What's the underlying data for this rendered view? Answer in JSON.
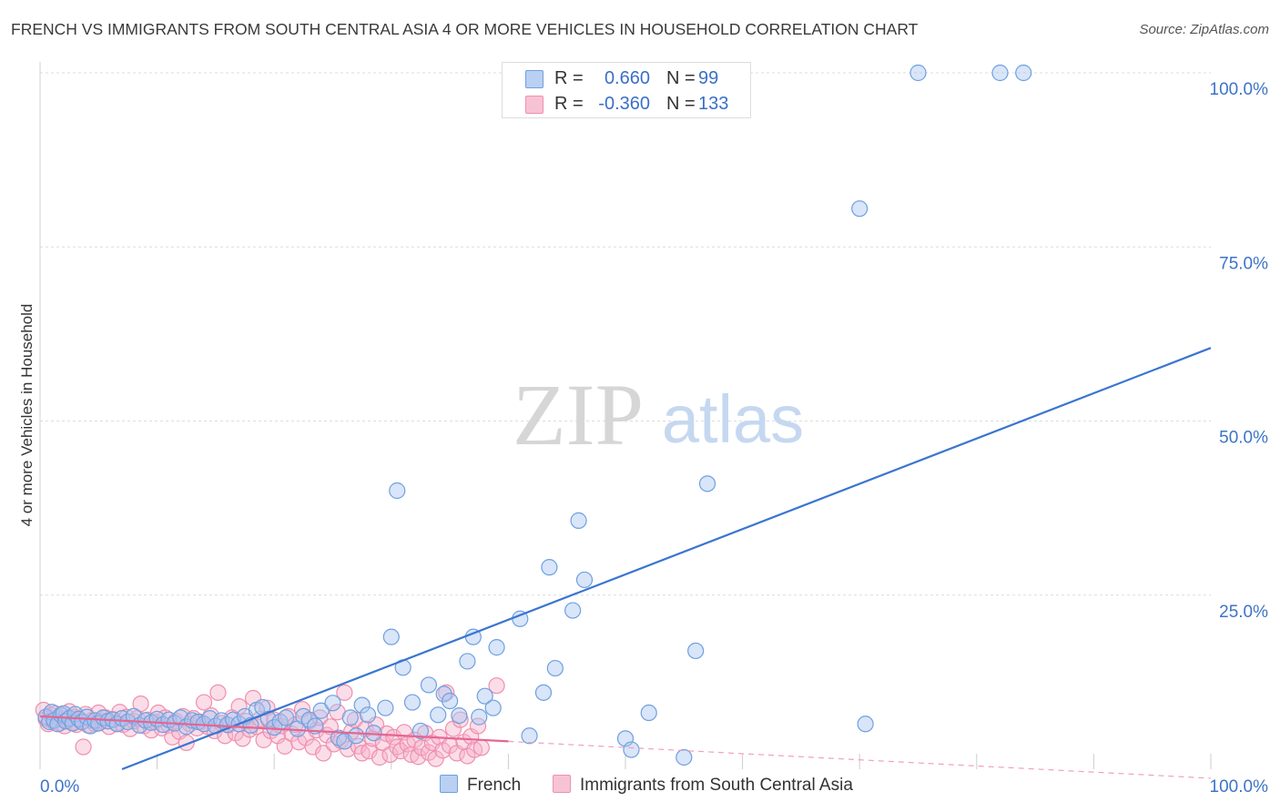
{
  "header": {
    "title": "FRENCH VS IMMIGRANTS FROM SOUTH CENTRAL ASIA 4 OR MORE VEHICLES IN HOUSEHOLD CORRELATION CHART",
    "source": "Source: ZipAtlas.com"
  },
  "watermark": {
    "zip": "ZIP",
    "atlas": "atlas"
  },
  "legend": {
    "series": [
      {
        "name": "French",
        "r_label": "R =",
        "r_value": "0.660",
        "n_label": "N =",
        "n_value": "99",
        "color": "#6fa0e0",
        "fill": "#b9d0f2"
      },
      {
        "name": "Immigrants from South Central Asia",
        "r_label": "R =",
        "r_value": "-0.360",
        "n_label": "N =",
        "n_value": "133",
        "color": "#ef8faf",
        "fill": "#f7c3d4"
      }
    ]
  },
  "chart_data": {
    "type": "scatter",
    "title": "FRENCH VS IMMIGRANTS FROM SOUTH CENTRAL ASIA 4 OR MORE VEHICLES IN HOUSEHOLD CORRELATION CHART",
    "xlabel": "",
    "ylabel": "4 or more Vehicles in Household",
    "xlim": [
      0,
      100
    ],
    "ylim": [
      0,
      100
    ],
    "x_tick_labels": [
      "0.0%",
      "100.0%"
    ],
    "y_tick_labels": [
      "25.0%",
      "50.0%",
      "75.0%",
      "100.0%"
    ],
    "y_tick_values": [
      25,
      50,
      75,
      100
    ],
    "series": [
      {
        "name": "French",
        "color": "#3a75d0",
        "trend": {
          "x": [
            7,
            100
          ],
          "y": [
            0,
            60.5
          ]
        },
        "points": [
          [
            0.5,
            7.5
          ],
          [
            0.8,
            6.8
          ],
          [
            1,
            8.2
          ],
          [
            1.2,
            7
          ],
          [
            1.5,
            6.5
          ],
          [
            1.8,
            7.8
          ],
          [
            2,
            8
          ],
          [
            2.2,
            6.9
          ],
          [
            2.5,
            7.3
          ],
          [
            2.8,
            6.6
          ],
          [
            3,
            7.9
          ],
          [
            3.3,
            7.2
          ],
          [
            3.6,
            6.8
          ],
          [
            4,
            7.5
          ],
          [
            4.3,
            6.2
          ],
          [
            4.7,
            7
          ],
          [
            5,
            6.6
          ],
          [
            5.4,
            7.4
          ],
          [
            5.8,
            6.9
          ],
          [
            6.2,
            7.1
          ],
          [
            6.6,
            6.5
          ],
          [
            7,
            7.3
          ],
          [
            7.5,
            6.8
          ],
          [
            8,
            7.6
          ],
          [
            8.5,
            6.3
          ],
          [
            9,
            7
          ],
          [
            9.5,
            6.7
          ],
          [
            10,
            7.2
          ],
          [
            10.5,
            6.4
          ],
          [
            11,
            7.1
          ],
          [
            11.5,
            6.6
          ],
          [
            12,
            7.4
          ],
          [
            12.5,
            6.1
          ],
          [
            13,
            7
          ],
          [
            13.5,
            6.8
          ],
          [
            14,
            6.5
          ],
          [
            14.5,
            7.3
          ],
          [
            15,
            6.2
          ],
          [
            15.5,
            7
          ],
          [
            16,
            6.4
          ],
          [
            16.5,
            7.1
          ],
          [
            17,
            6.5
          ],
          [
            17.5,
            7.6
          ],
          [
            18,
            6.3
          ],
          [
            18.5,
            8.5
          ],
          [
            19,
            8.9
          ],
          [
            19.5,
            7.2
          ],
          [
            20,
            6
          ],
          [
            20.5,
            6.8
          ],
          [
            21,
            7.4
          ],
          [
            22,
            5.8
          ],
          [
            22.5,
            7.6
          ],
          [
            23,
            7.1
          ],
          [
            23.5,
            6.2
          ],
          [
            24,
            8.4
          ],
          [
            25,
            9.5
          ],
          [
            25.5,
            4.5
          ],
          [
            26,
            4
          ],
          [
            26.5,
            7.4
          ],
          [
            27,
            4.8
          ],
          [
            27.5,
            9.2
          ],
          [
            28,
            7.8
          ],
          [
            28.5,
            5.2
          ],
          [
            29.5,
            8.8
          ],
          [
            30.5,
            40
          ],
          [
            30,
            19
          ],
          [
            31,
            14.6
          ],
          [
            31.8,
            9.6
          ],
          [
            32.5,
            5.5
          ],
          [
            33.2,
            12.1
          ],
          [
            34,
            7.8
          ],
          [
            34.5,
            10.8
          ],
          [
            35,
            9.8
          ],
          [
            35.8,
            7.7
          ],
          [
            36.5,
            15.5
          ],
          [
            37,
            19
          ],
          [
            37.5,
            7.5
          ],
          [
            38,
            10.5
          ],
          [
            38.7,
            8.8
          ],
          [
            39,
            17.5
          ],
          [
            41,
            21.6
          ],
          [
            41.8,
            4.8
          ],
          [
            43,
            11
          ],
          [
            43.5,
            29
          ],
          [
            44,
            14.5
          ],
          [
            45.5,
            22.8
          ],
          [
            46,
            35.7
          ],
          [
            46.5,
            27.2
          ],
          [
            50,
            4.4
          ],
          [
            50.5,
            2.8
          ],
          [
            52,
            8.1
          ],
          [
            55,
            1.7
          ],
          [
            56,
            17
          ],
          [
            57,
            41
          ],
          [
            70,
            80.5
          ],
          [
            75,
            100
          ],
          [
            82,
            100
          ],
          [
            84,
            100
          ],
          [
            70.5,
            6.5
          ]
        ]
      },
      {
        "name": "Immigrants from South Central Asia",
        "color": "#e66592",
        "trend": {
          "x": [
            0,
            40
          ],
          "y": [
            7.6,
            4.0
          ]
        },
        "trend_dashed": {
          "x": [
            40,
            100
          ],
          "y": [
            4.0,
            -1.3
          ]
        },
        "points": [
          [
            0.3,
            8.5
          ],
          [
            0.5,
            7.2
          ],
          [
            0.7,
            6.5
          ],
          [
            0.9,
            7.8
          ],
          [
            1.1,
            6.9
          ],
          [
            1.3,
            8
          ],
          [
            1.5,
            7.4
          ],
          [
            1.7,
            6.6
          ],
          [
            1.9,
            7.7
          ],
          [
            2.1,
            6.2
          ],
          [
            2.3,
            7.1
          ],
          [
            2.5,
            8.3
          ],
          [
            2.7,
            6.7
          ],
          [
            2.9,
            7.5
          ],
          [
            3.1,
            6.4
          ],
          [
            3.3,
            7.3
          ],
          [
            3.5,
            6.8
          ],
          [
            3.7,
            3.2
          ],
          [
            3.9,
            7.9
          ],
          [
            4.1,
            6.3
          ],
          [
            4.4,
            7
          ],
          [
            4.7,
            6.5
          ],
          [
            5,
            8.1
          ],
          [
            5.3,
            6.9
          ],
          [
            5.6,
            7.4
          ],
          [
            5.9,
            6.1
          ],
          [
            6.2,
            7.2
          ],
          [
            6.5,
            6.6
          ],
          [
            6.8,
            8.2
          ],
          [
            7.1,
            6.4
          ],
          [
            7.4,
            7.5
          ],
          [
            7.7,
            5.8
          ],
          [
            8,
            6.9
          ],
          [
            8.3,
            7.3
          ],
          [
            8.6,
            9.4
          ],
          [
            8.9,
            6.2
          ],
          [
            9.2,
            7.1
          ],
          [
            9.5,
            5.6
          ],
          [
            9.8,
            6.8
          ],
          [
            10.1,
            8.1
          ],
          [
            10.4,
            5.9
          ],
          [
            10.7,
            7.4
          ],
          [
            11,
            6.3
          ],
          [
            11.3,
            4.6
          ],
          [
            11.6,
            6.9
          ],
          [
            11.9,
            5.4
          ],
          [
            12.2,
            7.6
          ],
          [
            12.5,
            3.8
          ],
          [
            12.8,
            6.5
          ],
          [
            13.1,
            7.3
          ],
          [
            13.4,
            5.9
          ],
          [
            13.7,
            6.8
          ],
          [
            14,
            9.6
          ],
          [
            14.3,
            6.1
          ],
          [
            14.6,
            7.7
          ],
          [
            14.9,
            5.5
          ],
          [
            15.2,
            11
          ],
          [
            15.5,
            6.6
          ],
          [
            15.8,
            4.8
          ],
          [
            16.1,
            6.3
          ],
          [
            16.4,
            7.4
          ],
          [
            16.7,
            5.2
          ],
          [
            17,
            9
          ],
          [
            17.3,
            4.4
          ],
          [
            17.6,
            6.9
          ],
          [
            17.9,
            5.7
          ],
          [
            18.2,
            10.2
          ],
          [
            18.5,
            6.1
          ],
          [
            18.8,
            7.2
          ],
          [
            19.1,
            4.2
          ],
          [
            19.4,
            8.8
          ],
          [
            19.7,
            5.5
          ],
          [
            20,
            7.1
          ],
          [
            20.3,
            4.8
          ],
          [
            20.6,
            6.2
          ],
          [
            20.9,
            3.3
          ],
          [
            21.2,
            7.6
          ],
          [
            21.5,
            5.1
          ],
          [
            21.8,
            6.4
          ],
          [
            22.1,
            3.9
          ],
          [
            22.4,
            8.6
          ],
          [
            22.7,
            4.5
          ],
          [
            23,
            6.9
          ],
          [
            23.3,
            3.2
          ],
          [
            23.6,
            5.6
          ],
          [
            23.9,
            7.4
          ],
          [
            24.2,
            2.3
          ],
          [
            24.5,
            4.9
          ],
          [
            24.8,
            6.1
          ],
          [
            25.1,
            3.6
          ],
          [
            25.4,
            8.2
          ],
          [
            25.7,
            4.1
          ],
          [
            26,
            11
          ],
          [
            26.3,
            2.9
          ],
          [
            26.6,
            5.4
          ],
          [
            26.9,
            7.1
          ],
          [
            27.2,
            3.3
          ],
          [
            27.5,
            2.3
          ],
          [
            27.8,
            5.8
          ],
          [
            28.1,
            2.6
          ],
          [
            28.4,
            4.4
          ],
          [
            28.7,
            6.4
          ],
          [
            29,
            1.7
          ],
          [
            29.3,
            3.8
          ],
          [
            29.6,
            5.1
          ],
          [
            29.9,
            2.1
          ],
          [
            30.2,
            4.6
          ],
          [
            30.5,
            3.2
          ],
          [
            30.8,
            2.6
          ],
          [
            31.1,
            5.3
          ],
          [
            31.4,
            3.6
          ],
          [
            31.7,
            2.1
          ],
          [
            32,
            4.2
          ],
          [
            32.3,
            1.8
          ],
          [
            32.6,
            3.1
          ],
          [
            32.9,
            5.2
          ],
          [
            33.2,
            2.4
          ],
          [
            33.5,
            3.8
          ],
          [
            33.8,
            1.5
          ],
          [
            34.1,
            4.6
          ],
          [
            34.4,
            2.7
          ],
          [
            34.7,
            11
          ],
          [
            35,
            3.4
          ],
          [
            35.3,
            5.8
          ],
          [
            35.6,
            2.3
          ],
          [
            35.9,
            7.1
          ],
          [
            36.2,
            3.9
          ],
          [
            36.5,
            1.9
          ],
          [
            36.8,
            4.7
          ],
          [
            37.1,
            2.8
          ],
          [
            37.4,
            6.2
          ],
          [
            37.7,
            3.1
          ],
          [
            39,
            12
          ]
        ]
      }
    ]
  },
  "bottom_legend": {
    "items": [
      "French",
      "Immigrants from South Central Asia"
    ]
  }
}
